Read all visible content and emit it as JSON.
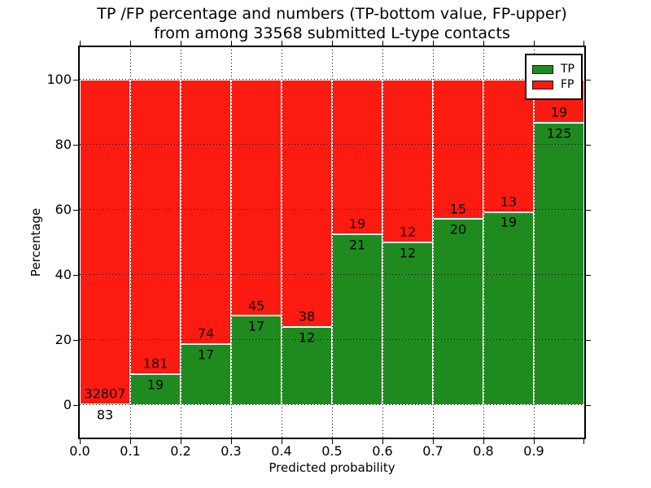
{
  "title": {
    "line1": "TP /FP percentage and numbers (TP-bottom value, FP-upper)",
    "line2": "from among 33568 submitted L-type contacts"
  },
  "axes": {
    "xlabel": "Predicted probability",
    "ylabel": "Percentage",
    "x_tick_labels": [
      "0.0",
      "0.1",
      "0.2",
      "0.3",
      "0.4",
      "0.5",
      "0.6",
      "0.7",
      "0.8",
      "0.9"
    ],
    "y_tick_labels": [
      "0",
      "20",
      "40",
      "60",
      "80",
      "100"
    ],
    "y_tick_values": [
      0,
      20,
      40,
      60,
      80,
      100
    ],
    "xlim": [
      0.0,
      1.0
    ],
    "ylim": [
      -10,
      110
    ],
    "grid_style": "dotted"
  },
  "legend": {
    "position": "upper right",
    "items": [
      {
        "label": "TP",
        "color": "#1f8b1f"
      },
      {
        "label": "FP",
        "color": "#fb1b10"
      }
    ]
  },
  "chart_data": {
    "type": "bar",
    "stacked": true,
    "normalized_to_percent": 100,
    "title": "TP /FP percentage and numbers (TP-bottom value, FP-upper) from among 33568 submitted L-type contacts",
    "xlabel": "Predicted probability",
    "ylabel": "Percentage",
    "total_submitted_contacts": 33568,
    "bin_width": 0.1,
    "bin_starts": [
      0.0,
      0.1,
      0.2,
      0.3,
      0.4,
      0.5,
      0.6,
      0.7,
      0.8,
      0.9
    ],
    "series": [
      {
        "name": "TP",
        "color": "#1f8b1f",
        "counts": [
          83,
          19,
          17,
          17,
          12,
          21,
          12,
          20,
          19,
          125
        ]
      },
      {
        "name": "FP",
        "color": "#fb1b10",
        "counts": [
          32807,
          181,
          74,
          45,
          38,
          19,
          12,
          15,
          13,
          19
        ]
      }
    ],
    "tp_percent_of_bin": [
      0.25,
      9.5,
      18.68,
      27.42,
      24.0,
      52.5,
      50.0,
      57.14,
      59.38,
      86.81
    ],
    "legend_position": "upper right",
    "grid": true
  },
  "colors": {
    "tp": "#1f8b1f",
    "fp": "#fb1b10",
    "bar_edge": "#ffffff",
    "grid": "#000000",
    "spine": "#000000",
    "background": "#ffffff"
  }
}
